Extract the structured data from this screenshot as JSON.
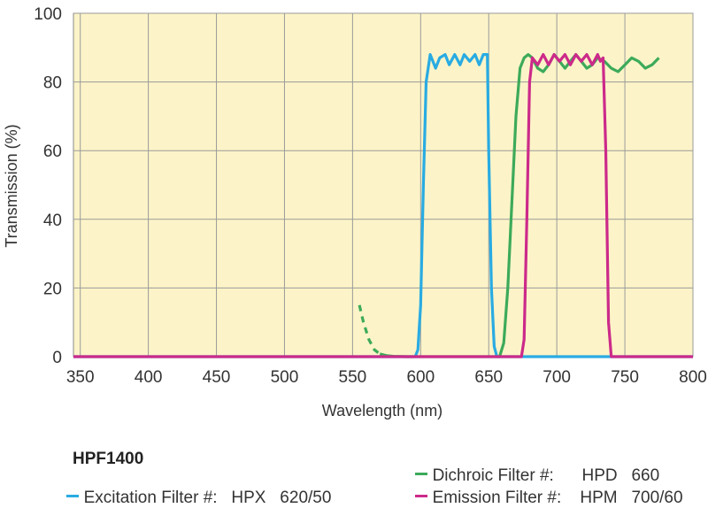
{
  "chart_data": {
    "type": "line",
    "title": "",
    "xlabel": "Wavelength (nm)",
    "ylabel": "Transmission (%)",
    "xlim": [
      345,
      800
    ],
    "ylim": [
      0,
      100
    ],
    "x_ticks": [
      350,
      400,
      450,
      500,
      550,
      600,
      650,
      700,
      750,
      800
    ],
    "y_ticks": [
      0,
      20,
      40,
      60,
      80,
      100
    ],
    "grid": true,
    "background": "#fcf4c8",
    "product": "HPF1400",
    "series": [
      {
        "name": "Excitation Filter #:",
        "part_number": "HPX   620/50",
        "color": "#29abe2",
        "x": [
          345,
          596,
          598,
          600,
          602,
          604,
          607,
          611,
          614,
          618,
          621,
          625,
          629,
          632,
          636,
          640,
          643,
          646,
          649,
          650,
          652,
          654,
          656,
          660,
          800
        ],
        "y": [
          0,
          0,
          2,
          15,
          50,
          80,
          88,
          84,
          87,
          88,
          85,
          88,
          85,
          88,
          86,
          88,
          85,
          88,
          88,
          60,
          20,
          3,
          0,
          0,
          0
        ]
      },
      {
        "name": "Dichroic Filter #:",
        "part_number": "HPD   660",
        "color": "#3daa5a",
        "x": [
          555,
          558,
          562,
          566,
          570,
          575,
          580,
          590,
          600,
          650,
          658,
          661,
          664,
          667,
          670,
          673,
          676,
          679,
          682,
          686,
          690,
          694,
          698,
          702,
          706,
          710,
          714,
          718,
          722,
          726,
          730,
          735,
          740,
          745,
          750,
          755,
          760,
          765,
          770,
          775
        ],
        "y": [
          15,
          10,
          5,
          2,
          0.8,
          0.3,
          0.1,
          0,
          0,
          0,
          0,
          4,
          20,
          45,
          70,
          84,
          87,
          88,
          87,
          84,
          83,
          85,
          88,
          86,
          84,
          86,
          88,
          86,
          84,
          85,
          87,
          86,
          84,
          83,
          85,
          87,
          86,
          84,
          85,
          87
        ],
        "dashed_until_x": 572
      },
      {
        "name": "Emission Filter #:",
        "part_number": "HPM   700/60",
        "color": "#cc2a8a",
        "x": [
          345,
          674,
          676,
          678,
          680,
          682,
          686,
          690,
          694,
          698,
          702,
          706,
          710,
          714,
          718,
          722,
          726,
          730,
          732,
          734,
          736,
          738,
          740,
          800
        ],
        "y": [
          0,
          0,
          5,
          40,
          80,
          87,
          85,
          88,
          85,
          88,
          86,
          88,
          85,
          88,
          86,
          88,
          85,
          88,
          86,
          87,
          60,
          10,
          0,
          0
        ]
      }
    ]
  }
}
